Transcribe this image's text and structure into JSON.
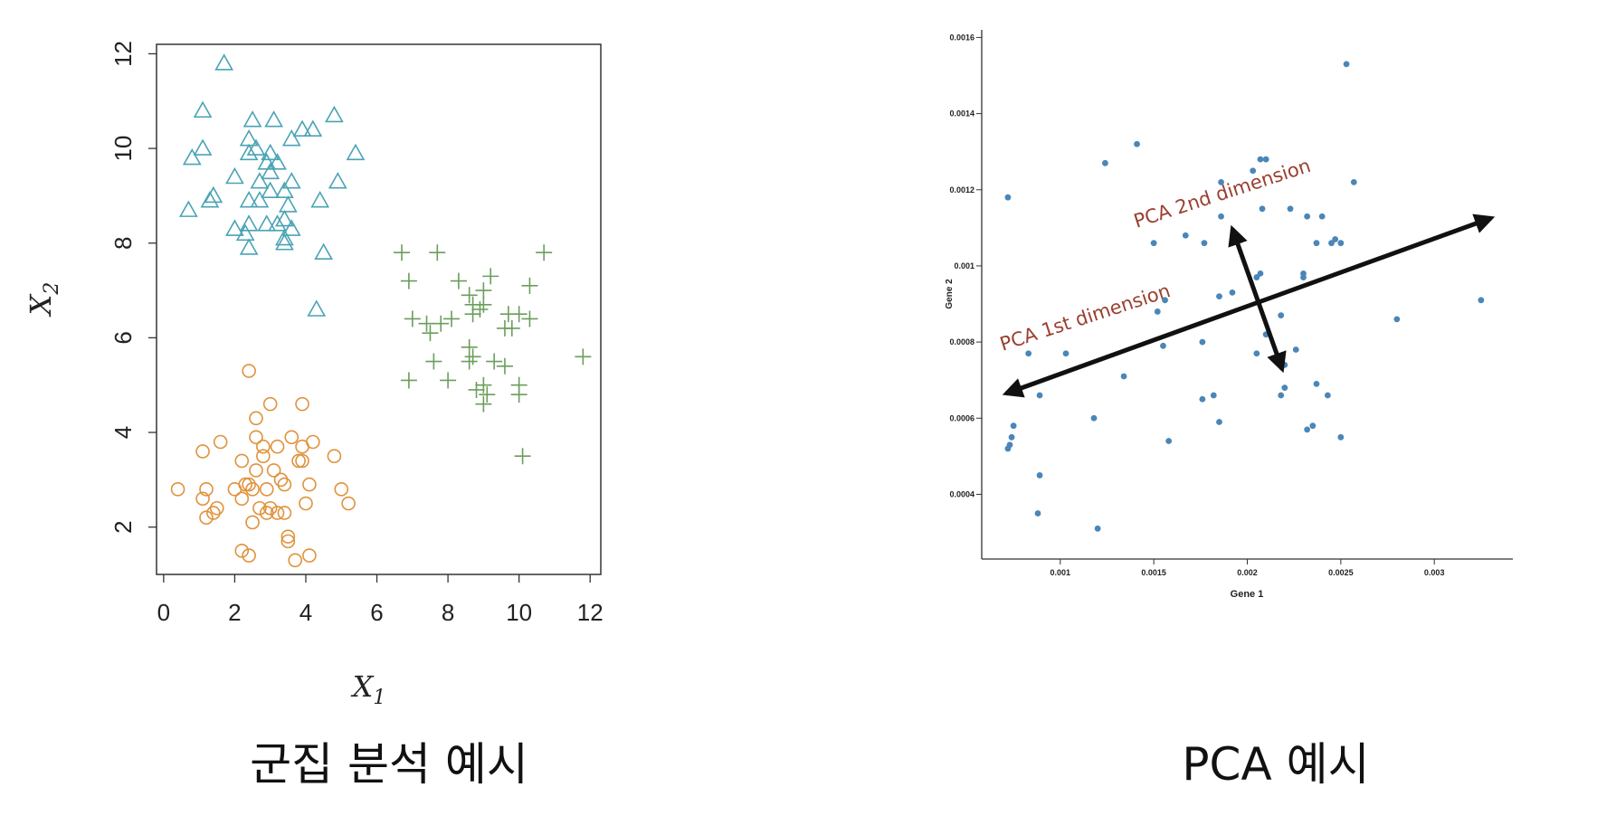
{
  "chart_data": [
    {
      "type": "scatter",
      "xlabel": "X",
      "xlabel_sub": "1",
      "ylabel": "X",
      "ylabel_sub": "2",
      "xlim": [
        -0.2,
        12.3
      ],
      "ylim": [
        1.0,
        12.2
      ],
      "xticks": [
        "0",
        "2",
        "4",
        "6",
        "8",
        "10",
        "12"
      ],
      "yticks": [
        "2",
        "4",
        "6",
        "8",
        "10",
        "12"
      ],
      "series": [
        {
          "marker": "triangle",
          "color": "#4aa3b5",
          "points": [
            [
              1.7,
              11.8
            ],
            [
              1.1,
              10.8
            ],
            [
              2.5,
              10.6
            ],
            [
              3.1,
              10.6
            ],
            [
              4.8,
              10.7
            ],
            [
              3.9,
              10.4
            ],
            [
              4.2,
              10.4
            ],
            [
              1.1,
              10.0
            ],
            [
              2.6,
              10.0
            ],
            [
              2.4,
              10.2
            ],
            [
              3.6,
              10.2
            ],
            [
              0.8,
              9.8
            ],
            [
              2.4,
              9.9
            ],
            [
              3.0,
              9.9
            ],
            [
              2.9,
              9.7
            ],
            [
              3.2,
              9.7
            ],
            [
              3.0,
              9.5
            ],
            [
              5.4,
              9.9
            ],
            [
              2.0,
              9.4
            ],
            [
              2.7,
              9.3
            ],
            [
              3.6,
              9.3
            ],
            [
              3.4,
              9.1
            ],
            [
              3.0,
              9.1
            ],
            [
              4.9,
              9.3
            ],
            [
              1.4,
              9.0
            ],
            [
              1.3,
              8.9
            ],
            [
              2.4,
              8.9
            ],
            [
              2.7,
              8.9
            ],
            [
              3.5,
              8.8
            ],
            [
              4.4,
              8.9
            ],
            [
              0.7,
              8.7
            ],
            [
              3.4,
              8.5
            ],
            [
              2.0,
              8.3
            ],
            [
              2.4,
              8.4
            ],
            [
              2.9,
              8.4
            ],
            [
              3.2,
              8.4
            ],
            [
              3.6,
              8.3
            ],
            [
              2.3,
              8.2
            ],
            [
              3.4,
              8.1
            ],
            [
              3.4,
              8.0
            ],
            [
              2.4,
              7.9
            ],
            [
              4.5,
              7.8
            ],
            [
              4.3,
              6.6
            ]
          ]
        },
        {
          "marker": "plus",
          "color": "#6a9e5c",
          "points": [
            [
              6.7,
              7.8
            ],
            [
              7.7,
              7.8
            ],
            [
              10.7,
              7.8
            ],
            [
              6.9,
              7.2
            ],
            [
              8.3,
              7.2
            ],
            [
              9.2,
              7.3
            ],
            [
              10.3,
              7.1
            ],
            [
              8.6,
              6.9
            ],
            [
              9.0,
              7.0
            ],
            [
              8.7,
              6.7
            ],
            [
              8.9,
              6.6
            ],
            [
              9.0,
              6.7
            ],
            [
              8.7,
              6.5
            ],
            [
              7.0,
              6.4
            ],
            [
              8.1,
              6.4
            ],
            [
              9.7,
              6.5
            ],
            [
              10.0,
              6.5
            ],
            [
              10.3,
              6.4
            ],
            [
              7.4,
              6.3
            ],
            [
              7.8,
              6.3
            ],
            [
              9.8,
              6.2
            ],
            [
              9.6,
              6.2
            ],
            [
              7.5,
              6.1
            ],
            [
              8.6,
              5.8
            ],
            [
              8.7,
              5.6
            ],
            [
              11.8,
              5.6
            ],
            [
              7.6,
              5.5
            ],
            [
              8.6,
              5.5
            ],
            [
              9.3,
              5.5
            ],
            [
              9.6,
              5.4
            ],
            [
              6.9,
              5.1
            ],
            [
              8.0,
              5.1
            ],
            [
              9.0,
              5.0
            ],
            [
              10.0,
              5.0
            ],
            [
              8.8,
              4.9
            ],
            [
              9.1,
              4.8
            ],
            [
              10.0,
              4.8
            ],
            [
              9.0,
              4.6
            ],
            [
              10.1,
              3.5
            ]
          ]
        },
        {
          "marker": "circle",
          "color": "#e0923c",
          "points": [
            [
              2.4,
              5.3
            ],
            [
              3.0,
              4.6
            ],
            [
              3.9,
              4.6
            ],
            [
              2.6,
              4.3
            ],
            [
              2.6,
              3.9
            ],
            [
              3.6,
              3.9
            ],
            [
              1.6,
              3.8
            ],
            [
              2.8,
              3.7
            ],
            [
              3.2,
              3.7
            ],
            [
              3.9,
              3.7
            ],
            [
              4.2,
              3.8
            ],
            [
              1.1,
              3.6
            ],
            [
              2.8,
              3.5
            ],
            [
              3.8,
              3.4
            ],
            [
              2.2,
              3.4
            ],
            [
              3.9,
              3.4
            ],
            [
              4.8,
              3.5
            ],
            [
              2.6,
              3.2
            ],
            [
              3.1,
              3.2
            ],
            [
              3.3,
              3.0
            ],
            [
              2.3,
              2.9
            ],
            [
              2.4,
              2.9
            ],
            [
              3.4,
              2.9
            ],
            [
              4.1,
              2.9
            ],
            [
              1.2,
              2.8
            ],
            [
              2.0,
              2.8
            ],
            [
              2.5,
              2.8
            ],
            [
              2.9,
              2.8
            ],
            [
              5.0,
              2.8
            ],
            [
              0.4,
              2.8
            ],
            [
              1.1,
              2.6
            ],
            [
              2.2,
              2.6
            ],
            [
              2.7,
              2.4
            ],
            [
              3.0,
              2.4
            ],
            [
              4.0,
              2.5
            ],
            [
              5.2,
              2.5
            ],
            [
              1.5,
              2.4
            ],
            [
              1.4,
              2.3
            ],
            [
              3.2,
              2.3
            ],
            [
              3.4,
              2.3
            ],
            [
              2.9,
              2.3
            ],
            [
              2.5,
              2.1
            ],
            [
              1.2,
              2.2
            ],
            [
              3.5,
              1.8
            ],
            [
              3.5,
              1.7
            ],
            [
              2.2,
              1.5
            ],
            [
              2.4,
              1.4
            ],
            [
              4.1,
              1.4
            ],
            [
              3.7,
              1.3
            ]
          ]
        }
      ]
    },
    {
      "type": "scatter",
      "xlabel": "Gene 1",
      "ylabel": "Gene 2",
      "xlim": [
        0.00058,
        0.00342
      ],
      "ylim": [
        0.00023,
        0.00162
      ],
      "xticks": [
        "0.001",
        "0.0015",
        "0.002",
        "0.0025",
        "0.003"
      ],
      "yticks": [
        "0.0004",
        "0.0006",
        "0.0008",
        "0.001",
        "0.0012",
        "0.0014",
        "0.0016"
      ],
      "series": [
        {
          "marker": "dot",
          "color": "#4a86b8",
          "points": [
            [
              0.00072,
              0.00118
            ],
            [
              0.00124,
              0.00127
            ],
            [
              0.00141,
              0.00132
            ],
            [
              0.00207,
              0.00128
            ],
            [
              0.0021,
              0.00128
            ],
            [
              0.00203,
              0.00125
            ],
            [
              0.00253,
              0.00153
            ],
            [
              0.00257,
              0.00122
            ],
            [
              0.00186,
              0.00122
            ],
            [
              0.00208,
              0.00115
            ],
            [
              0.00223,
              0.00115
            ],
            [
              0.00232,
              0.00113
            ],
            [
              0.0024,
              0.00113
            ],
            [
              0.00186,
              0.00113
            ],
            [
              0.00167,
              0.00108
            ],
            [
              0.0015,
              0.00106
            ],
            [
              0.00177,
              0.00106
            ],
            [
              0.00237,
              0.00106
            ],
            [
              0.00245,
              0.00106
            ],
            [
              0.00247,
              0.00107
            ],
            [
              0.0025,
              0.00106
            ],
            [
              0.0023,
              0.00098
            ],
            [
              0.0023,
              0.00097
            ],
            [
              0.00207,
              0.00098
            ],
            [
              0.00205,
              0.00097
            ],
            [
              0.00152,
              0.00088
            ],
            [
              0.00156,
              0.00091
            ],
            [
              0.00192,
              0.00093
            ],
            [
              0.00185,
              0.00092
            ],
            [
              0.00218,
              0.00087
            ],
            [
              0.0028,
              0.00086
            ],
            [
              0.00325,
              0.00091
            ],
            [
              0.0021,
              0.00082
            ],
            [
              0.00205,
              0.00077
            ],
            [
              0.0022,
              0.00074
            ],
            [
              0.00226,
              0.00078
            ],
            [
              0.00176,
              0.0008
            ],
            [
              0.00155,
              0.00079
            ],
            [
              0.00103,
              0.00077
            ],
            [
              0.00083,
              0.00077
            ],
            [
              0.00134,
              0.00071
            ],
            [
              0.0022,
              0.00068
            ],
            [
              0.00218,
              0.00066
            ],
            [
              0.00237,
              0.00069
            ],
            [
              0.00243,
              0.00066
            ],
            [
              0.00176,
              0.00065
            ],
            [
              0.00182,
              0.00066
            ],
            [
              0.00089,
              0.00066
            ],
            [
              0.00075,
              0.00058
            ],
            [
              0.00074,
              0.00055
            ],
            [
              0.00072,
              0.00052
            ],
            [
              0.00073,
              0.00053
            ],
            [
              0.00118,
              0.0006
            ],
            [
              0.00185,
              0.00059
            ],
            [
              0.00158,
              0.00054
            ],
            [
              0.00232,
              0.00057
            ],
            [
              0.00235,
              0.00058
            ],
            [
              0.0025,
              0.00055
            ],
            [
              0.00089,
              0.00045
            ],
            [
              0.00088,
              0.00035
            ],
            [
              0.0012,
              0.00031
            ]
          ]
        }
      ],
      "annotations": {
        "pc1_label": "PCA 1st dimension",
        "pc2_label": "PCA 2nd dimension"
      }
    }
  ],
  "captions": {
    "left": "군집 분석 예시",
    "right": "PCA 예시"
  }
}
